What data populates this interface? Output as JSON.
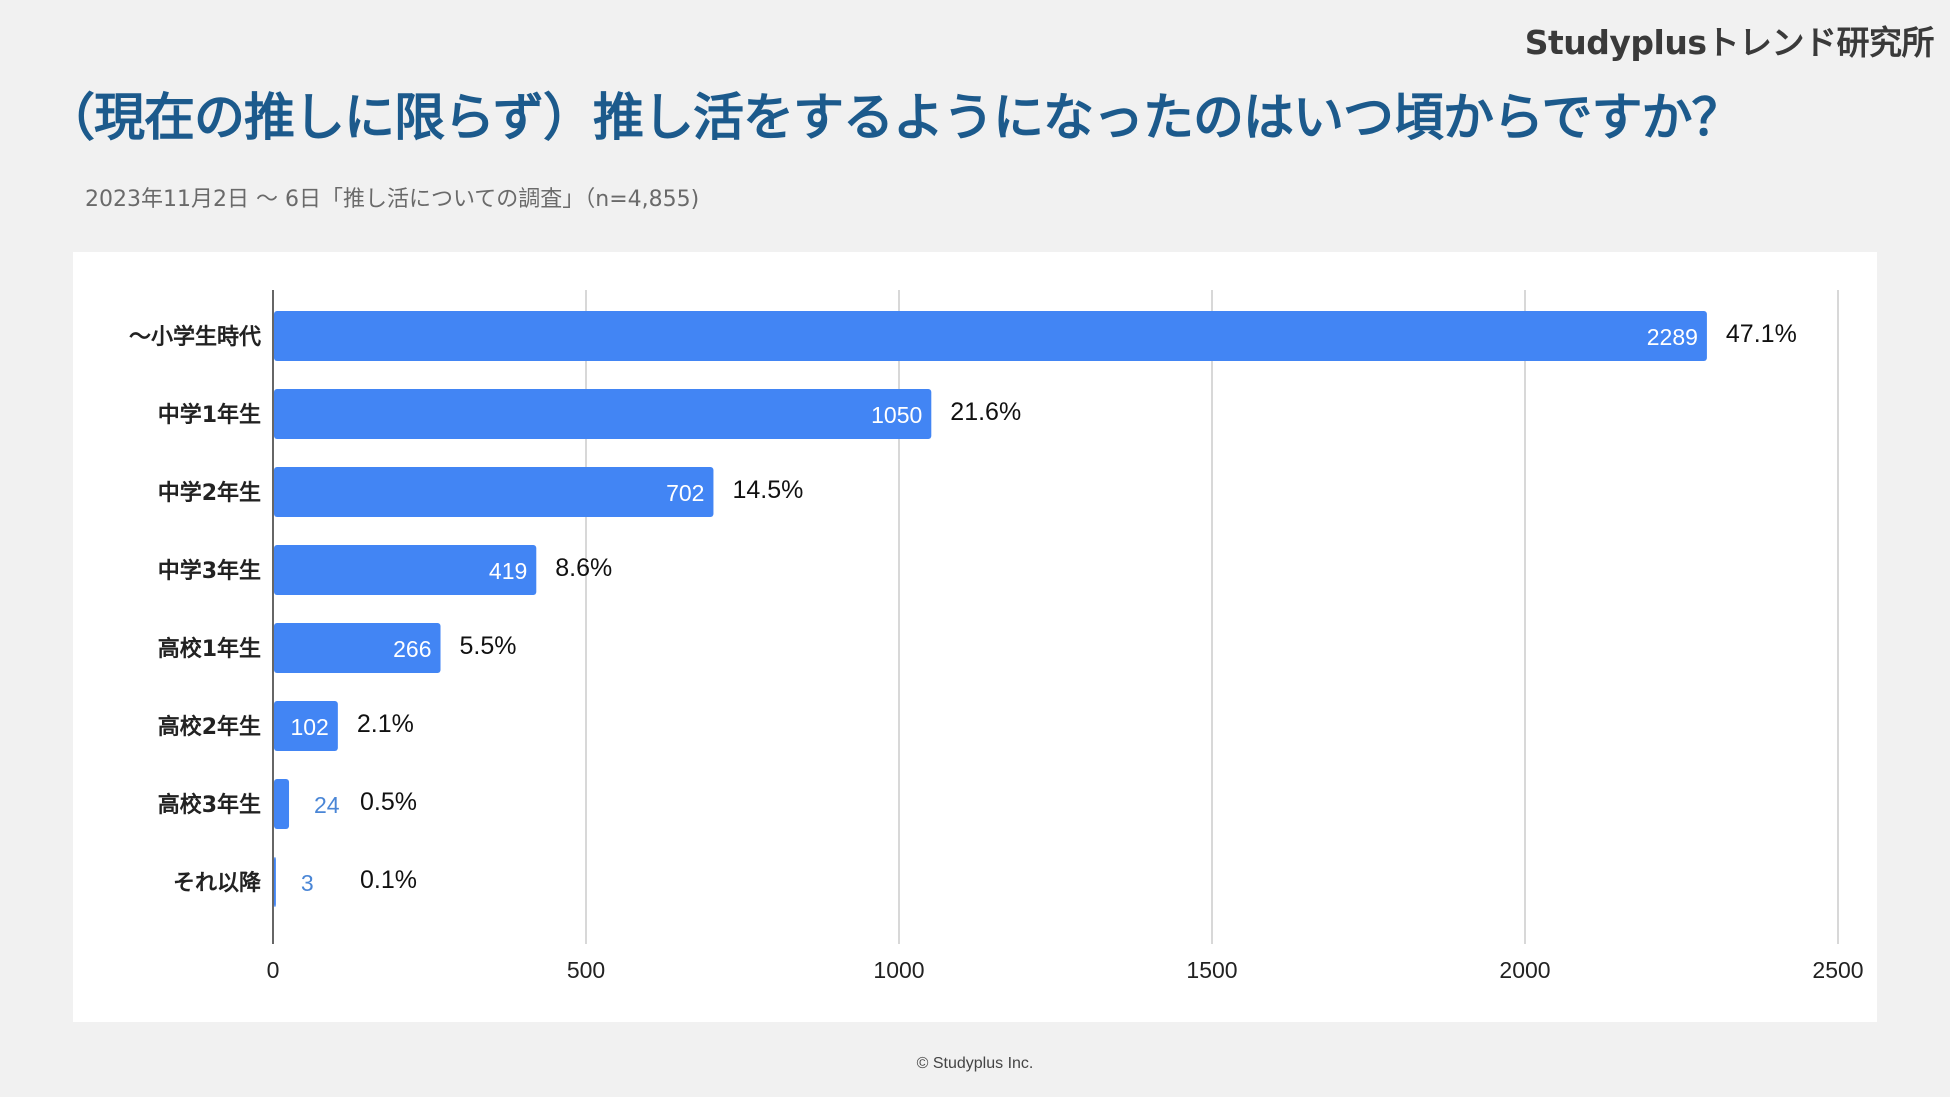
{
  "brand": "Studyplusトレンド研究所",
  "title": "（現在の推しに限らず）推し活をするようになったのはいつ頃からですか？",
  "subtitle": "2023年11月2日 〜 6日「推し活についての調査」（n=4,855)",
  "footer": "© Studyplus Inc.",
  "colors": {
    "bar": "#4285f4",
    "title": "#1c5a8c",
    "grid": "#cccccc",
    "inside_label": "#ffffff",
    "outside_value": "#4a86d6"
  },
  "chart_data": {
    "type": "bar",
    "orientation": "horizontal",
    "title": "（現在の推しに限らず）推し活をするようになったのはいつ頃からですか？",
    "xlabel": "",
    "ylabel": "",
    "xlim": [
      0,
      2500
    ],
    "xticks": [
      "0",
      "500",
      "1000",
      "1500",
      "2000",
      "2500"
    ],
    "grid": true,
    "categories": [
      "〜小学生時代",
      "中学1年生",
      "中学2年生",
      "中学3年生",
      "高校1年生",
      "高校2年生",
      "高校3年生",
      "それ以降"
    ],
    "values": [
      2289,
      1050,
      702,
      419,
      266,
      102,
      24,
      3
    ],
    "percent_labels": [
      "47.1%",
      "21.6%",
      "14.5%",
      "8.6%",
      "5.5%",
      "2.1%",
      "0.5%",
      "0.1%"
    ]
  }
}
